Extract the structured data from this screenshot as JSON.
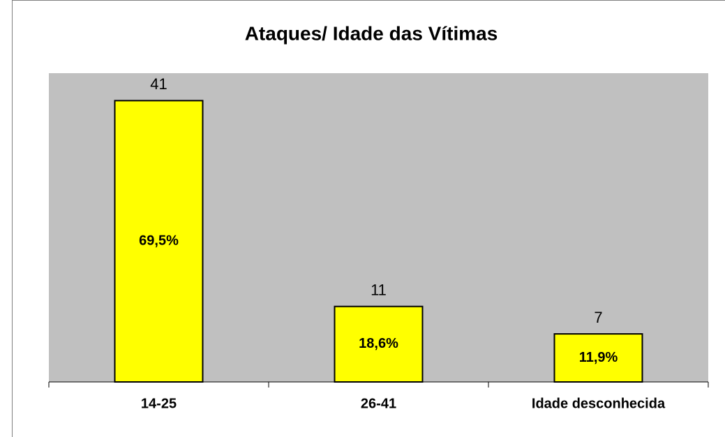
{
  "chart_data": {
    "type": "bar",
    "title": "Ataques/ Idade das Vítimas",
    "categories": [
      "14-25",
      "26-41",
      "Idade desconhecida"
    ],
    "values": [
      41,
      11,
      7
    ],
    "percent_labels": [
      "69,5%",
      "18,6%",
      "11,9%"
    ],
    "color": "#ffff00",
    "ylim": [
      0,
      45
    ]
  }
}
